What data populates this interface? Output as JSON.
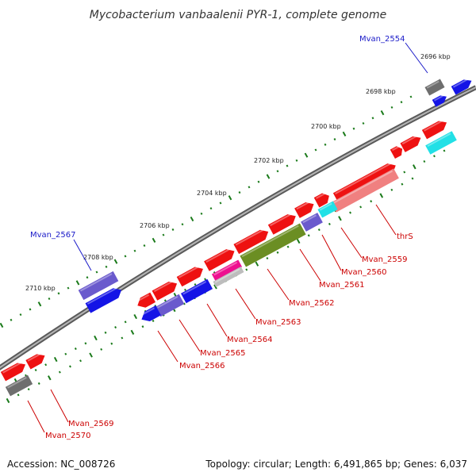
{
  "title": "Mycobacterium vanbaalenii PYR-1, complete genome",
  "colors": {
    "backbone": "#808080",
    "tick": "#1a7a1a",
    "label_callout": "#cc0000",
    "label_other": "#1a1ac8",
    "red": "#ee1111",
    "blue": "#1414e6",
    "slate": "#6a5acd",
    "gray": "#6e6e6e",
    "cyan": "#22e0e6",
    "salmon": "#f08080",
    "olive": "#6b8e23",
    "pink": "#ee1090",
    "silver": "#bdbdbd"
  },
  "scale_labels": [
    "2696 kbp",
    "2698 kbp",
    "2700 kbp",
    "2702 kbp",
    "2704 kbp",
    "2706 kbp",
    "2708 kbp",
    "2710 kbp"
  ],
  "gene_labels": [
    {
      "name": "Mvan_2554",
      "color": "other"
    },
    {
      "name": "Mvan_2567",
      "color": "other"
    },
    {
      "name": "thrS",
      "color": "callout"
    },
    {
      "name": "Mvan_2559",
      "color": "callout"
    },
    {
      "name": "Mvan_2560",
      "color": "callout"
    },
    {
      "name": "Mvan_2561",
      "color": "callout"
    },
    {
      "name": "Mvan_2562",
      "color": "callout"
    },
    {
      "name": "Mvan_2563",
      "color": "callout"
    },
    {
      "name": "Mvan_2564",
      "color": "callout"
    },
    {
      "name": "Mvan_2565",
      "color": "callout"
    },
    {
      "name": "Mvan_2566",
      "color": "callout"
    },
    {
      "name": "Mvan_2569",
      "color": "callout"
    },
    {
      "name": "Mvan_2570",
      "color": "callout"
    }
  ],
  "footer": {
    "accession": "Accession: NC_008726",
    "stats": "Topology: circular; Length: 6,491,865 bp; Genes: 6,037"
  }
}
